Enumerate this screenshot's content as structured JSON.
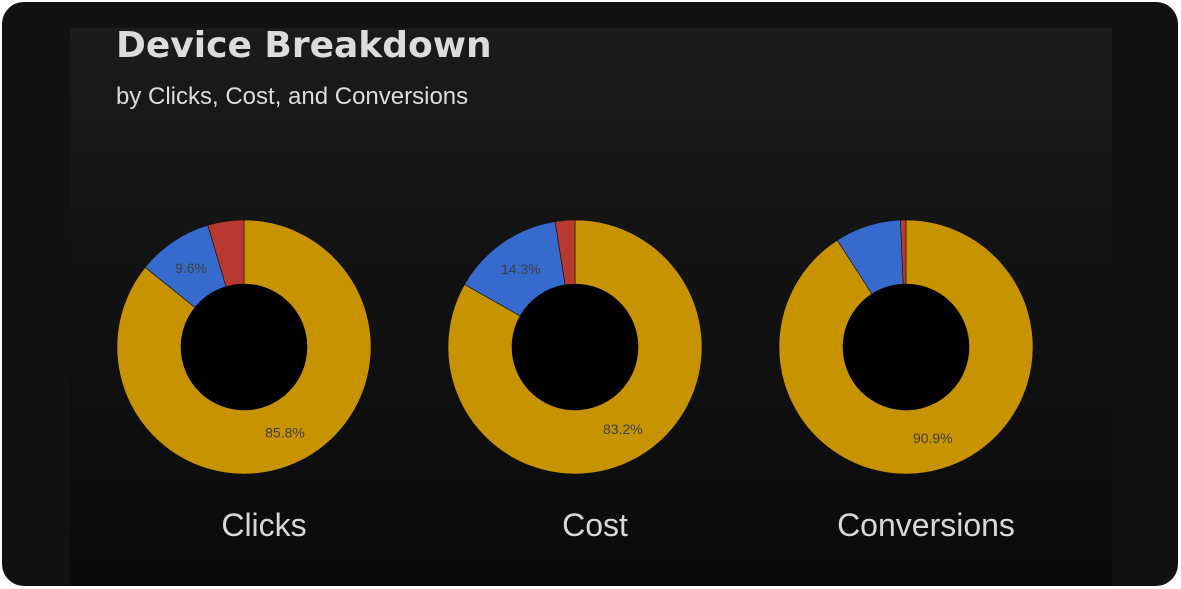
{
  "header": {
    "title": "Device Breakdown",
    "subtitle": "by Clicks, Cost, and Conversions"
  },
  "colors": {
    "primary": "#C89300",
    "secondary": "#366ACC",
    "tertiary": "#B73930"
  },
  "chart_data": [
    {
      "type": "pie",
      "title": "Clicks",
      "donut": true,
      "values": [
        85.8,
        9.6,
        4.6
      ],
      "labels": [
        "85.8%",
        "9.6%",
        ""
      ],
      "colors": [
        "#C89300",
        "#366ACC",
        "#B73930"
      ]
    },
    {
      "type": "pie",
      "title": "Cost",
      "donut": true,
      "values": [
        83.2,
        14.3,
        2.5
      ],
      "labels": [
        "83.2%",
        "14.3%",
        ""
      ],
      "colors": [
        "#C89300",
        "#366ACC",
        "#B73930"
      ]
    },
    {
      "type": "pie",
      "title": "Conversions",
      "donut": true,
      "values": [
        90.9,
        8.4,
        0.7
      ],
      "labels": [
        "90.9%",
        "",
        ""
      ],
      "colors": [
        "#C89300",
        "#366ACC",
        "#B73930"
      ]
    }
  ]
}
